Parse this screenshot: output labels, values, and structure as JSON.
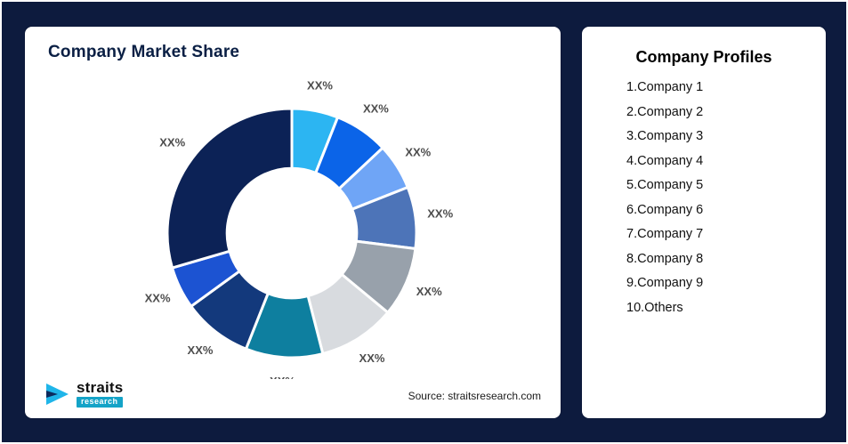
{
  "page": {
    "background": "#0d1b3e"
  },
  "chart_card": {
    "title": "Company Market Share",
    "source": "Source: straitsresearch.com"
  },
  "logo": {
    "brand": "straits",
    "sub": "research"
  },
  "profiles_card": {
    "title": "Company Profiles",
    "items": [
      "1.Company 1",
      "2.Company 2",
      "3.Company 3",
      "4.Company 4",
      "5.Company 5",
      "6.Company 6",
      "7.Company 7",
      "8.Company 8",
      "9.Company 9",
      "10.Others"
    ]
  },
  "chart_data": {
    "type": "pie",
    "subtype": "donut",
    "title": "Company Market Share",
    "unit": "%",
    "direction": "clockwise",
    "start_angle_deg": 0,
    "inner_radius_ratio": 0.52,
    "legend": false,
    "segments": [
      {
        "label": "XX%",
        "value": 6,
        "color": "#2cb5f2"
      },
      {
        "label": "XX%",
        "value": 7,
        "color": "#0b64e8"
      },
      {
        "label": "XX%",
        "value": 6,
        "color": "#6fa5f6"
      },
      {
        "label": "XX%",
        "value": 8,
        "color": "#4d74b8"
      },
      {
        "label": "XX%",
        "value": 9,
        "color": "#98a1ab"
      },
      {
        "label": "XX%",
        "value": 10,
        "color": "#d8dbdf"
      },
      {
        "label": "XX%",
        "value": 10,
        "color": "#0e7f9f"
      },
      {
        "label": "XX%",
        "value": 9,
        "color": "#13397c"
      },
      {
        "label": "XX%",
        "value": 5.5,
        "color": "#1c53d2"
      },
      {
        "label": "XX%",
        "value": 29.5,
        "color": "#0c2256"
      }
    ]
  }
}
